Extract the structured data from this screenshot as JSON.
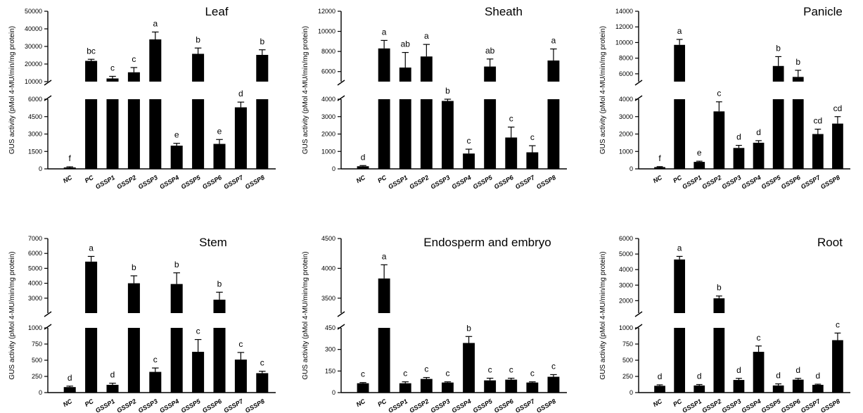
{
  "chart_data": [
    {
      "type": "bar",
      "title": "Leaf",
      "ylabel": "GUS activity (pMol 4-MU/min/mg protein)",
      "categories": [
        "NC",
        "PC",
        "GSSP1",
        "GSSP2",
        "GSSP3",
        "GSSP4",
        "GSSP5",
        "GSSP6",
        "GSSP7",
        "GSSP8"
      ],
      "values": [
        120,
        21800,
        11800,
        15300,
        34000,
        2000,
        25800,
        2150,
        5300,
        25200
      ],
      "errors": [
        60,
        900,
        1200,
        2700,
        4200,
        200,
        3300,
        380,
        450,
        2900
      ],
      "letters": [
        "f",
        "bc",
        "c",
        "c",
        "a",
        "e",
        "b",
        "e",
        "d",
        "b"
      ],
      "y_broken": true,
      "ylim_lower": [
        0,
        6000
      ],
      "ylim_upper": [
        10000,
        50000
      ],
      "yticks_lower": [
        "0",
        "1500",
        "3000",
        "4500",
        "6000"
      ],
      "yticks_upper": [
        "10000",
        "20000",
        "30000",
        "40000",
        "50000"
      ]
    },
    {
      "type": "bar",
      "title": "Sheath",
      "ylabel": "GUS activity (pMol 4-MU/min/mg protein)",
      "categories": [
        "NC",
        "PC",
        "GSSP1",
        "GSSP2",
        "GSSP3",
        "GSSP4",
        "GSSP5",
        "GSSP6",
        "GSSP7",
        "GSSP8"
      ],
      "values": [
        150,
        8300,
        6400,
        7500,
        3900,
        880,
        6500,
        1800,
        950,
        7100
      ],
      "errors": [
        40,
        800,
        1500,
        1200,
        250,
        250,
        750,
        600,
        380,
        1150
      ],
      "letters": [
        "d",
        "a",
        "ab",
        "a",
        "b",
        "c",
        "ab",
        "c",
        "c",
        "a"
      ],
      "y_broken": true,
      "ylim_lower": [
        0,
        4000
      ],
      "ylim_upper": [
        5000,
        12000
      ],
      "yticks_lower": [
        "0",
        "1000",
        "2000",
        "3000",
        "4000"
      ],
      "yticks_upper": [
        "6000",
        "8000",
        "10000",
        "12000"
      ]
    },
    {
      "type": "bar",
      "title": "Panicle",
      "ylabel": "GUS activity (pMol 4-MU/min/mg protein)",
      "categories": [
        "NC",
        "PC",
        "GSSP1",
        "GSSP2",
        "GSSP3",
        "GSSP4",
        "GSSP5",
        "GSSP6",
        "GSSP7",
        "GSSP8"
      ],
      "values": [
        100,
        9700,
        400,
        3300,
        1200,
        1500,
        7000,
        5600,
        2000,
        2600
      ],
      "errors": [
        30,
        700,
        40,
        550,
        150,
        120,
        1200,
        850,
        280,
        400
      ],
      "letters": [
        "f",
        "a",
        "e",
        "c",
        "d",
        "d",
        "b",
        "b",
        "cd",
        "cd"
      ],
      "y_broken": true,
      "ylim_lower": [
        0,
        4000
      ],
      "ylim_upper": [
        5000,
        14000
      ],
      "yticks_lower": [
        "0",
        "1000",
        "2000",
        "3000",
        "4000"
      ],
      "yticks_upper": [
        "6000",
        "8000",
        "10000",
        "12000",
        "14000"
      ]
    },
    {
      "type": "bar",
      "title": "Stem",
      "ylabel": "GUS activity (pMol 4-MU/min/mg protein)",
      "categories": [
        "NC",
        "PC",
        "GSSP1",
        "GSSP2",
        "GSSP3",
        "GSSP4",
        "GSSP5",
        "GSSP6",
        "GSSP7",
        "GSSP8"
      ],
      "values": [
        85,
        5450,
        120,
        4000,
        320,
        3950,
        630,
        2900,
        510,
        300
      ],
      "errors": [
        15,
        350,
        25,
        500,
        60,
        750,
        190,
        500,
        110,
        30
      ],
      "letters": [
        "d",
        "a",
        "d",
        "b",
        "c",
        "b",
        "c",
        "b",
        "c",
        "c"
      ],
      "y_broken": true,
      "ylim_lower": [
        0,
        1000
      ],
      "ylim_upper": [
        2000,
        7000
      ],
      "yticks_lower": [
        "0",
        "250",
        "500",
        "750",
        "1000"
      ],
      "yticks_upper": [
        "3000",
        "4000",
        "5000",
        "6000",
        "7000"
      ]
    },
    {
      "type": "bar",
      "title": "Endosperm and embryo",
      "ylabel": "GUS activity (pMol 4-MU/min/mg protein)",
      "categories": [
        "NC",
        "PC",
        "GSSP1",
        "GSSP2",
        "GSSP3",
        "GSSP4",
        "GSSP5",
        "GSSP6",
        "GSSP7",
        "GSSP8"
      ],
      "values": [
        65,
        3830,
        65,
        95,
        70,
        345,
        85,
        90,
        70,
        110
      ],
      "errors": [
        5,
        230,
        10,
        10,
        5,
        45,
        15,
        10,
        5,
        15
      ],
      "letters": [
        "c",
        "a",
        "c",
        "c",
        "c",
        "b",
        "c",
        "c",
        "c",
        "c"
      ],
      "y_broken": true,
      "ylim_lower": [
        0,
        450
      ],
      "ylim_upper": [
        3250,
        4500
      ],
      "yticks_lower": [
        "0",
        "150",
        "300",
        "450"
      ],
      "yticks_upper": [
        "3500",
        "4000",
        "4500"
      ]
    },
    {
      "type": "bar",
      "title": "Root",
      "ylabel": "GUS activity (pMol 4-MU/min/mg protein)",
      "categories": [
        "NC",
        "PC",
        "GSSP1",
        "GSSP2",
        "GSSP3",
        "GSSP4",
        "GSSP5",
        "GSSP6",
        "GSSP7",
        "GSSP8"
      ],
      "values": [
        105,
        4650,
        110,
        2150,
        195,
        630,
        110,
        200,
        120,
        810
      ],
      "errors": [
        15,
        200,
        15,
        150,
        25,
        90,
        25,
        20,
        10,
        110
      ],
      "letters": [
        "d",
        "a",
        "d",
        "b",
        "d",
        "c",
        "d",
        "d",
        "d",
        "c"
      ],
      "y_broken": true,
      "ylim_lower": [
        0,
        1000
      ],
      "ylim_upper": [
        1200,
        6000
      ],
      "yticks_lower": [
        "0",
        "250",
        "500",
        "750",
        "1000"
      ],
      "yticks_upper": [
        "2000",
        "3000",
        "4000",
        "5000",
        "6000"
      ]
    }
  ]
}
